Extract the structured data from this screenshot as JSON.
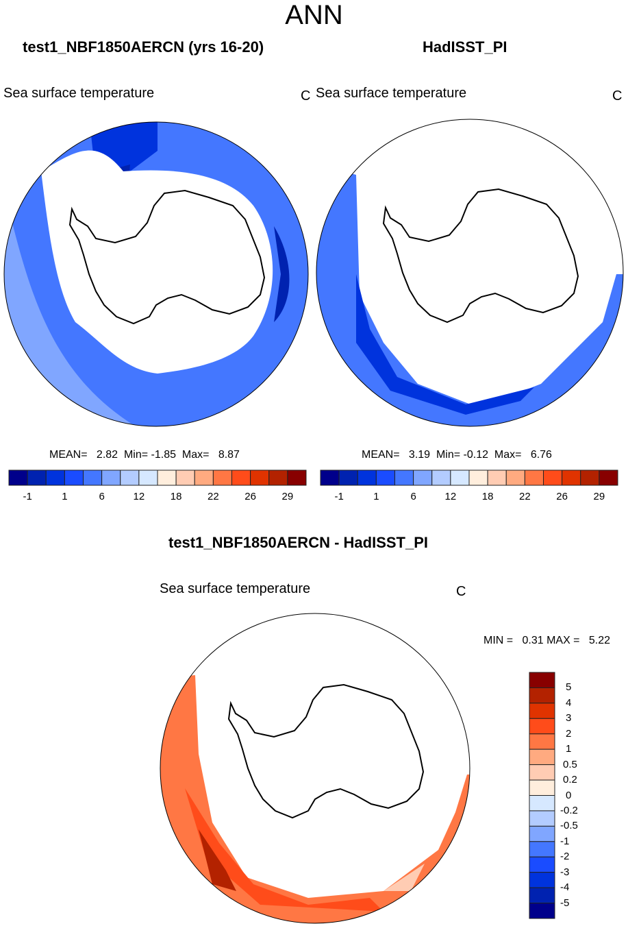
{
  "chart_data": [
    {
      "type": "heatmap",
      "projection": "south-polar-stereographic",
      "title": "test1_NBF1850AERCN (yrs 16-20)",
      "subtitle": "Sea surface temperature",
      "units": "C",
      "stats": {
        "mean_label": "MEAN=",
        "mean": "2.82",
        "min_label": "Min=",
        "min": "-1.85",
        "max_label": "Max=",
        "max": "8.87"
      },
      "colorbar_labels": [
        "-1",
        "1",
        "6",
        "12",
        "18",
        "22",
        "26",
        "29"
      ]
    },
    {
      "type": "heatmap",
      "projection": "south-polar-stereographic",
      "title": "HadISST_PI",
      "subtitle": "Sea surface temperature",
      "units": "C",
      "stats": {
        "mean_label": "MEAN=",
        "mean": "3.19",
        "min_label": "Min=",
        "min": "-0.12",
        "max_label": "Max=",
        "max": "6.76"
      },
      "colorbar_labels": [
        "-1",
        "1",
        "6",
        "12",
        "18",
        "22",
        "26",
        "29"
      ]
    },
    {
      "type": "heatmap",
      "projection": "south-polar-stereographic",
      "title": "test1_NBF1850AERCN - HadISST_PI",
      "subtitle": "Sea surface temperature",
      "units": "C",
      "stats": {
        "min_label": "MIN =",
        "min": "0.31",
        "max_label": "MAX =",
        "max": "5.22"
      },
      "colorbar_labels": [
        "5",
        "4",
        "3",
        "2",
        "1",
        "0.5",
        "0.2",
        "0",
        "-0.2",
        "-0.5",
        "-1",
        "-2",
        "-3",
        "-4",
        "-5"
      ]
    }
  ],
  "season": "ANN",
  "palette": [
    "#00008b",
    "#0022b0",
    "#0033dd",
    "#1a4cff",
    "#4477ff",
    "#80a6ff",
    "#b3ccff",
    "#d6e8ff",
    "#ffeedd",
    "#ffccb3",
    "#ffaa80",
    "#ff7744",
    "#ff4c1a",
    "#e03300",
    "#b32200",
    "#880000"
  ]
}
